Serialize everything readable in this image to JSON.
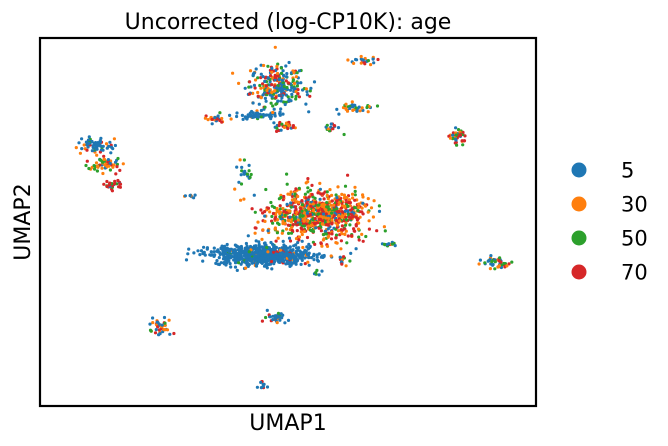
{
  "chart_data": {
    "type": "scatter",
    "title": "Uncorrected (log-CP10K): age",
    "xlabel": "UMAP1",
    "ylabel": "UMAP2",
    "xlim": [
      0,
      100
    ],
    "ylim": [
      0,
      100
    ],
    "grid": false,
    "ticks": false,
    "legend_position": "right",
    "series": [
      {
        "name": "5",
        "color": "#1f77b4"
      },
      {
        "name": "30",
        "color": "#ff7f0e"
      },
      {
        "name": "50",
        "color": "#2ca02c"
      },
      {
        "name": "70",
        "color": "#d62728"
      }
    ],
    "clusters": [
      {
        "center": [
          48,
          87
        ],
        "spread": [
          5,
          5
        ],
        "count": 260,
        "mix": [
          0.45,
          0.2,
          0.2,
          0.15
        ]
      },
      {
        "center": [
          44,
          79
        ],
        "spread": [
          5,
          1
        ],
        "count": 60,
        "mix": [
          0.9,
          0.05,
          0.05,
          0.0
        ]
      },
      {
        "center": [
          35,
          78
        ],
        "spread": [
          2,
          1
        ],
        "count": 25,
        "mix": [
          0.3,
          0.4,
          0.1,
          0.2
        ]
      },
      {
        "center": [
          64,
          81
        ],
        "spread": [
          3,
          1.2
        ],
        "count": 35,
        "mix": [
          0.5,
          0.3,
          0.2,
          0.0
        ]
      },
      {
        "center": [
          65,
          94
        ],
        "spread": [
          3,
          1
        ],
        "count": 22,
        "mix": [
          0.5,
          0.2,
          0.1,
          0.2
        ]
      },
      {
        "center": [
          59,
          75
        ],
        "spread": [
          1.5,
          2
        ],
        "count": 15,
        "mix": [
          0.2,
          0.3,
          0.2,
          0.3
        ]
      },
      {
        "center": [
          49,
          76
        ],
        "spread": [
          2,
          1.5
        ],
        "count": 30,
        "mix": [
          0.2,
          0.4,
          0.2,
          0.2
        ]
      },
      {
        "center": [
          11,
          71
        ],
        "spread": [
          3,
          2
        ],
        "count": 70,
        "mix": [
          0.8,
          0.1,
          0.05,
          0.05
        ]
      },
      {
        "center": [
          13,
          66
        ],
        "spread": [
          3,
          1.8
        ],
        "count": 60,
        "mix": [
          0.1,
          0.4,
          0.3,
          0.2
        ]
      },
      {
        "center": [
          15,
          60
        ],
        "spread": [
          2,
          1
        ],
        "count": 30,
        "mix": [
          0.2,
          0.1,
          0.3,
          0.4
        ]
      },
      {
        "center": [
          84,
          73
        ],
        "spread": [
          1.5,
          2
        ],
        "count": 40,
        "mix": [
          0.2,
          0.1,
          0.2,
          0.5
        ]
      },
      {
        "center": [
          41,
          64
        ],
        "spread": [
          1.5,
          3
        ],
        "count": 20,
        "mix": [
          0.6,
          0.1,
          0.3,
          0.0
        ]
      },
      {
        "center": [
          30.5,
          57
        ],
        "spread": [
          1,
          0.5
        ],
        "count": 8,
        "mix": [
          0.5,
          0.3,
          0.0,
          0.2
        ]
      },
      {
        "center": [
          56,
          52
        ],
        "spread": [
          9,
          6
        ],
        "count": 850,
        "mix": [
          0.1,
          0.32,
          0.23,
          0.35
        ]
      },
      {
        "center": [
          45,
          41
        ],
        "spread": [
          9,
          2.5
        ],
        "count": 750,
        "mix": [
          0.92,
          0.03,
          0.02,
          0.03
        ]
      },
      {
        "center": [
          70,
          44
        ],
        "spread": [
          2,
          0.6
        ],
        "count": 12,
        "mix": [
          0.3,
          0.3,
          0.2,
          0.2
        ]
      },
      {
        "center": [
          61,
          40
        ],
        "spread": [
          1.5,
          1.5
        ],
        "count": 15,
        "mix": [
          0.4,
          0.2,
          0.1,
          0.3
        ]
      },
      {
        "center": [
          56,
          36
        ],
        "spread": [
          0.8,
          0.6
        ],
        "count": 6,
        "mix": [
          0.5,
          0.0,
          0.5,
          0.0
        ]
      },
      {
        "center": [
          92,
          39
        ],
        "spread": [
          3,
          1.5
        ],
        "count": 45,
        "mix": [
          0.3,
          0.2,
          0.3,
          0.2
        ]
      },
      {
        "center": [
          24,
          22
        ],
        "spread": [
          2,
          2
        ],
        "count": 40,
        "mix": [
          0.4,
          0.2,
          0.1,
          0.3
        ]
      },
      {
        "center": [
          48,
          24
        ],
        "spread": [
          2.5,
          1.2
        ],
        "count": 30,
        "mix": [
          0.6,
          0.1,
          0.2,
          0.1
        ]
      },
      {
        "center": [
          45,
          5.5
        ],
        "spread": [
          0.8,
          0.8
        ],
        "count": 10,
        "mix": [
          0.6,
          0.2,
          0.0,
          0.2
        ]
      }
    ]
  }
}
